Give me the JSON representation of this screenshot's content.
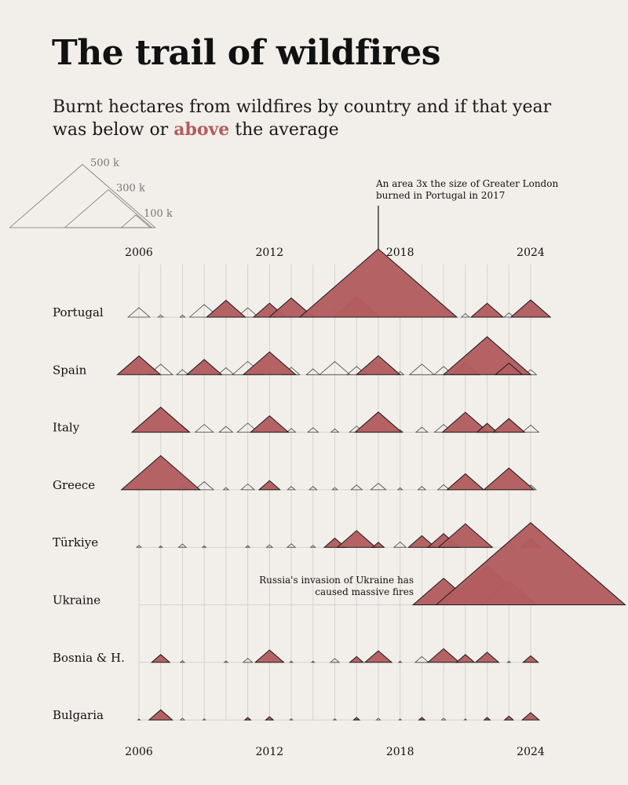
{
  "title": "The trail of wildfires",
  "subtitle": {
    "before": "Burnt hectares from wildfires by country and if that year was below or ",
    "highlight": "above",
    "after": " the average"
  },
  "colors": {
    "above": "#b35d60",
    "below_stroke": "#444444",
    "background": "#f2eeea",
    "grid": "#d6d2ce"
  },
  "chart_data": {
    "type": "triangle-ridgeline",
    "unit": "hectares",
    "x": [
      2006,
      2007,
      2008,
      2009,
      2010,
      2011,
      2012,
      2013,
      2014,
      2015,
      2016,
      2017,
      2018,
      2019,
      2020,
      2021,
      2022,
      2023,
      2024
    ],
    "x_ticks": [
      "2006",
      "2012",
      "2018",
      "2024"
    ],
    "size_legend": [
      {
        "label": "500 k",
        "value": 500000
      },
      {
        "label": "300 k",
        "value": 300000
      },
      {
        "label": "100 k",
        "value": 100000
      }
    ],
    "series": [
      {
        "name": "Portugal",
        "values": [
          75000,
          18000,
          17000,
          100000,
          133000,
          74000,
          110000,
          152000,
          20000,
          64000,
          161000,
          540000,
          44000,
          42000,
          67000,
          28000,
          110000,
          34000,
          136000
        ],
        "above": [
          0,
          0,
          0,
          0,
          1,
          0,
          1,
          1,
          0,
          0,
          1,
          1,
          0,
          0,
          0,
          0,
          1,
          0,
          1
        ]
      },
      {
        "name": "Spain",
        "values": [
          148000,
          83000,
          40000,
          120000,
          55000,
          105000,
          180000,
          58000,
          46000,
          104000,
          65000,
          150000,
          25000,
          84000,
          65000,
          95000,
          300000,
          92000,
          40000
        ],
        "above": [
          1,
          0,
          0,
          1,
          0,
          0,
          1,
          0,
          0,
          0,
          0,
          1,
          0,
          0,
          0,
          1,
          1,
          1,
          0
        ]
      },
      {
        "name": "Italy",
        "values": [
          20000,
          198000,
          50000,
          62000,
          46000,
          72000,
          130000,
          30000,
          36000,
          26000,
          48000,
          160000,
          20000,
          40000,
          62000,
          158000,
          70000,
          108000,
          56000
        ],
        "above": [
          0,
          1,
          0,
          0,
          0,
          0,
          1,
          0,
          0,
          0,
          0,
          1,
          0,
          0,
          0,
          1,
          1,
          1,
          0
        ]
      },
      {
        "name": "Greece",
        "values": [
          15000,
          270000,
          30000,
          64000,
          18000,
          46000,
          72000,
          26000,
          26000,
          18000,
          38000,
          52000,
          16000,
          26000,
          40000,
          126000,
          14000,
          172000,
          38000
        ],
        "above": [
          0,
          1,
          0,
          0,
          0,
          0,
          1,
          0,
          0,
          0,
          0,
          0,
          0,
          0,
          0,
          1,
          0,
          1,
          0
        ]
      },
      {
        "name": "Türkiye",
        "values": [
          16000,
          11000,
          26000,
          12000,
          5000,
          14000,
          20000,
          28000,
          16000,
          72000,
          132000,
          40000,
          42000,
          92000,
          108000,
          186000,
          18000,
          38000,
          70000
        ],
        "above": [
          0,
          0,
          0,
          0,
          0,
          0,
          0,
          0,
          0,
          1,
          1,
          1,
          0,
          1,
          1,
          1,
          0,
          0,
          1
        ]
      },
      {
        "name": "Ukraine",
        "values": [
          0,
          0,
          0,
          0,
          0,
          0,
          0,
          0,
          0,
          0,
          0,
          0,
          0,
          0,
          210000,
          16000,
          310000,
          190000,
          650000
        ],
        "above": [
          0,
          0,
          0,
          0,
          0,
          0,
          0,
          0,
          0,
          0,
          0,
          0,
          0,
          0,
          1,
          0,
          1,
          1,
          1
        ]
      },
      {
        "name": "Bosnia & H.",
        "values": [
          0,
          62000,
          14000,
          4000,
          12000,
          32000,
          98000,
          10000,
          10000,
          30000,
          46000,
          92000,
          10000,
          46000,
          108000,
          62000,
          80000,
          10000,
          52000
        ],
        "above": [
          0,
          1,
          0,
          0,
          0,
          0,
          1,
          0,
          0,
          0,
          1,
          1,
          0,
          0,
          1,
          1,
          1,
          0,
          1
        ]
      },
      {
        "name": "Bulgaria",
        "values": [
          8000,
          80000,
          14000,
          9000,
          0,
          20000,
          26000,
          10000,
          0,
          10000,
          20000,
          14000,
          8000,
          20000,
          14000,
          8000,
          20000,
          30000,
          58000
        ],
        "above": [
          0,
          1,
          0,
          0,
          0,
          1,
          1,
          0,
          0,
          0,
          1,
          0,
          0,
          1,
          0,
          0,
          1,
          1,
          1
        ]
      }
    ],
    "annotations": [
      {
        "text_lines": [
          "An area 3x the size of Greater London",
          "burned in Portugal in 2017"
        ]
      },
      {
        "text_lines": [
          "Russia's invasion of Ukraine has",
          "caused massive fires"
        ]
      }
    ]
  }
}
